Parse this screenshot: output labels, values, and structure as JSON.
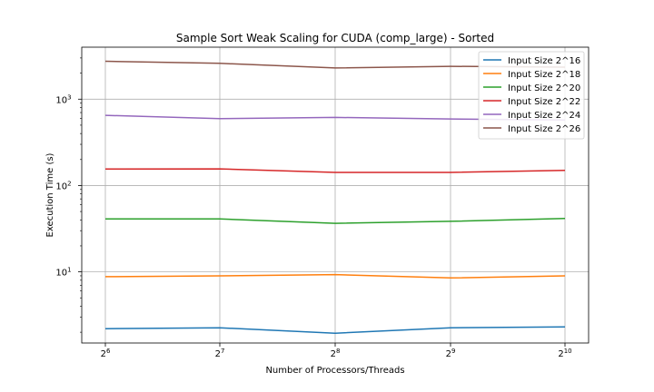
{
  "chart_data": {
    "type": "line",
    "title": "Sample Sort Weak Scaling for CUDA (comp_large) - Sorted",
    "xlabel": "Number of Processors/Threads",
    "ylabel": "Execution Time (s)",
    "x": [
      64,
      128,
      256,
      512,
      1024
    ],
    "x_tick_labels": [
      {
        "base": "2",
        "exp": "6"
      },
      {
        "base": "2",
        "exp": "7"
      },
      {
        "base": "2",
        "exp": "8"
      },
      {
        "base": "2",
        "exp": "9"
      },
      {
        "base": "2",
        "exp": "10"
      }
    ],
    "x_scale": "log2",
    "y_scale": "log10",
    "ylim": [
      1.5,
      4000
    ],
    "y_ticks": [
      {
        "value": 10,
        "base": "10",
        "exp": "1"
      },
      {
        "value": 100,
        "base": "10",
        "exp": "2"
      },
      {
        "value": 1000,
        "base": "10",
        "exp": "3"
      }
    ],
    "grid": true,
    "legend_position": "top-right",
    "series": [
      {
        "name": "Input Size 2^16",
        "color": "#1f77b4",
        "values": [
          2.2,
          2.25,
          1.95,
          2.25,
          2.3
        ]
      },
      {
        "name": "Input Size 2^18",
        "color": "#ff7f0e",
        "values": [
          8.8,
          9.0,
          9.3,
          8.5,
          9.0
        ]
      },
      {
        "name": "Input Size 2^20",
        "color": "#2ca02c",
        "values": [
          41,
          41,
          36.5,
          38.5,
          41.5
        ]
      },
      {
        "name": "Input Size 2^22",
        "color": "#d62728",
        "values": [
          155,
          156,
          142,
          142,
          150
        ]
      },
      {
        "name": "Input Size 2^24",
        "color": "#9467bd",
        "values": [
          650,
          595,
          615,
          590,
          575
        ]
      },
      {
        "name": "Input Size 2^26",
        "color": "#8c564b",
        "values": [
          2750,
          2600,
          2300,
          2400,
          2350
        ]
      }
    ]
  }
}
